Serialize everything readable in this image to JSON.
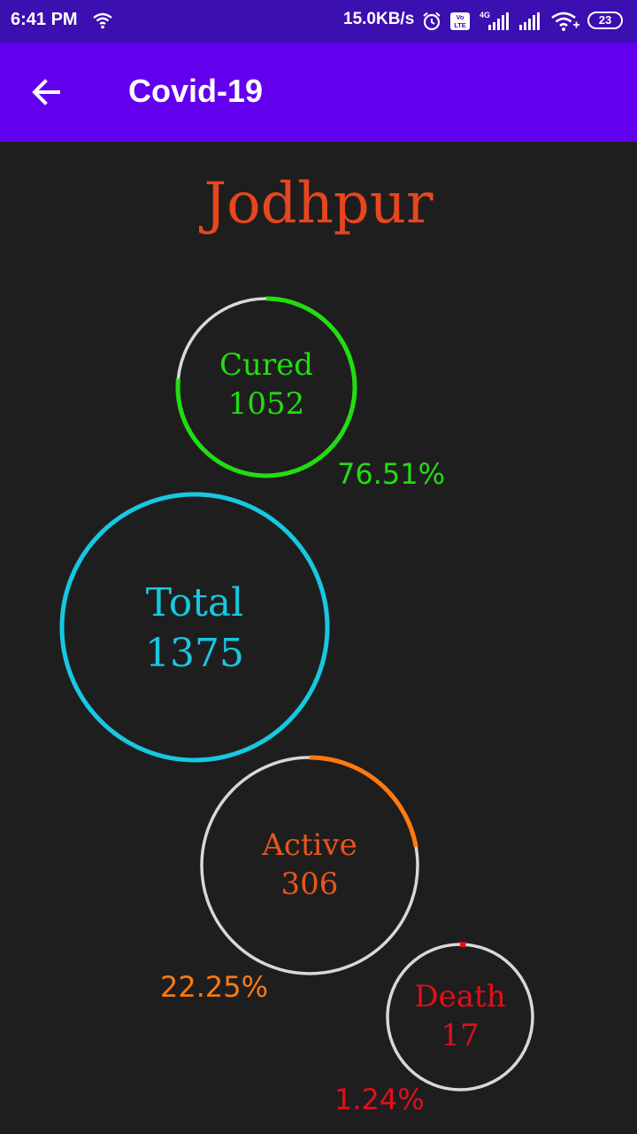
{
  "status_bar": {
    "time": "6:41 PM",
    "network_rate": "15.0KB/s",
    "signal_type": "4G",
    "volte": "Vo LTE",
    "battery": "23",
    "icons": [
      "wifi-icon",
      "alarm-icon",
      "volte-icon",
      "signal-icon",
      "signal-icon",
      "wifi-icon",
      "battery-icon"
    ]
  },
  "app_bar": {
    "title": "Covid-19",
    "back_icon": "arrow-left-icon",
    "color": "#6200ee"
  },
  "city": {
    "name": "Jodhpur",
    "color": "#e8461c"
  },
  "stats": {
    "cured": {
      "label": "Cured",
      "value": "1052",
      "percent": "76.51%",
      "fraction": 0.7651,
      "color": "#22dd11"
    },
    "total": {
      "label": "Total",
      "value": "1375",
      "color": "#17c8e0"
    },
    "active": {
      "label": "Active",
      "value": "306",
      "percent": "22.25%",
      "fraction": 0.2225,
      "color": "#ff7a10",
      "label_color": "#e8551c"
    },
    "death": {
      "label": "Death",
      "value": "17",
      "percent": "1.24%",
      "fraction": 0.0124,
      "color": "#e01018"
    }
  },
  "track_color": "#d8d8d8"
}
